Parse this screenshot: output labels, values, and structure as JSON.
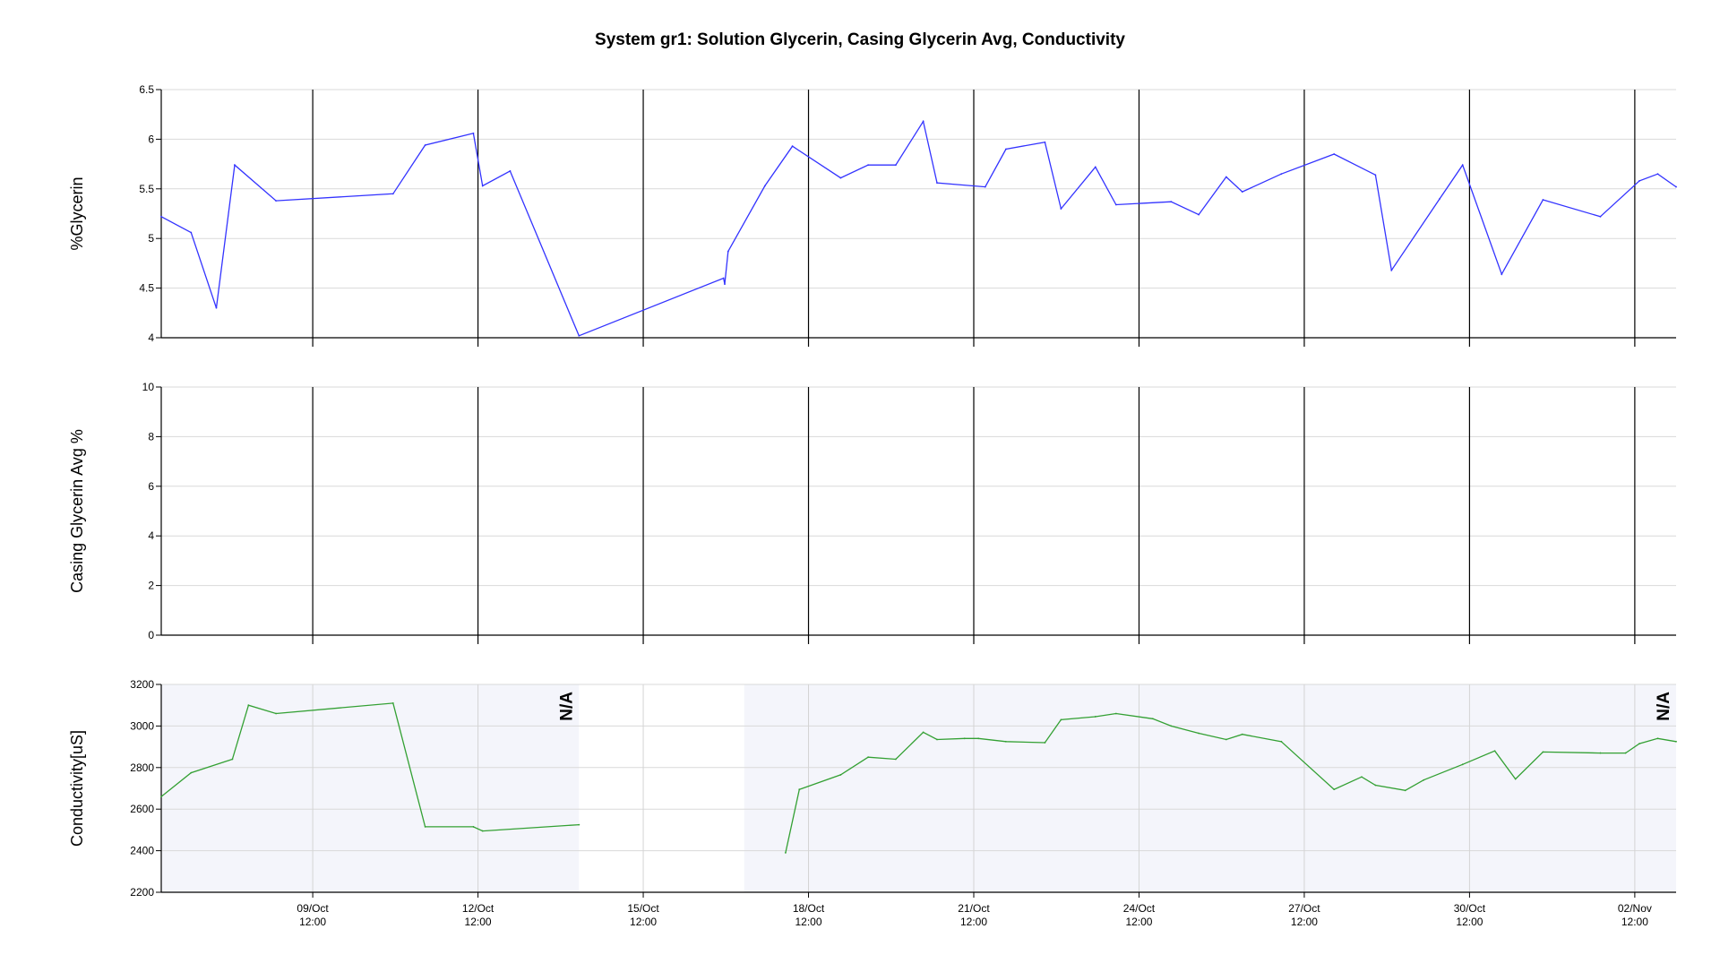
{
  "chart_data": {
    "type": "line",
    "title": "System gr1: Solution Glycerin, Casing Glycerin Avg, Conductivity",
    "x_range": [
      "2023-10-06 18:00",
      "2023-11-03 06:00"
    ],
    "x_ticks": [
      {
        "date": "2023-10-09 12:00",
        "line1": "09/Oct",
        "line2": "12:00"
      },
      {
        "date": "2023-10-12 12:00",
        "line1": "12/Oct",
        "line2": "12:00"
      },
      {
        "date": "2023-10-15 12:00",
        "line1": "15/Oct",
        "line2": "12:00"
      },
      {
        "date": "2023-10-18 12:00",
        "line1": "18/Oct",
        "line2": "12:00"
      },
      {
        "date": "2023-10-21 12:00",
        "line1": "21/Oct",
        "line2": "12:00"
      },
      {
        "date": "2023-10-24 12:00",
        "line1": "24/Oct",
        "line2": "12:00"
      },
      {
        "date": "2023-10-27 12:00",
        "line1": "27/Oct",
        "line2": "12:00"
      },
      {
        "date": "2023-10-30 12:00",
        "line1": "30/Oct",
        "line2": "12:00"
      },
      {
        "date": "2023-11-02 12:00",
        "line1": "02/Nov",
        "line2": "12:00"
      }
    ],
    "panels": [
      {
        "ylabel": "%Glycerin",
        "ylim": [
          4,
          6.5
        ],
        "yticks": [
          "4",
          "4.5",
          "5",
          "5.5",
          "6",
          "6.5"
        ],
        "tick_values": [
          4,
          4.5,
          5,
          5.5,
          6,
          6.5
        ],
        "color": "#3333ff",
        "series": [
          {
            "x": [
              "2023-10-06 18:00",
              "2023-10-07 07:00",
              "2023-10-07 18:00",
              "2023-10-08 02:00",
              "2023-10-08 20:00",
              "2023-10-10 23:00",
              "2023-10-11 13:00",
              "2023-10-12 10:00",
              "2023-10-12 14:00",
              "2023-10-13 02:00",
              "2023-10-14 08:00",
              "2023-10-16 23:00",
              "2023-10-16 23:30",
              "2023-10-17 01:00",
              "2023-10-17 17:00",
              "2023-10-18 05:00",
              "2023-10-19 02:00",
              "2023-10-19 14:00",
              "2023-10-20 02:00",
              "2023-10-20 14:00",
              "2023-10-20 20:00",
              "2023-10-21 17:00",
              "2023-10-22 02:00",
              "2023-10-22 19:00",
              "2023-10-23 02:00",
              "2023-10-23 17:00",
              "2023-10-24 02:00",
              "2023-10-25 02:00",
              "2023-10-25 14:00",
              "2023-10-26 02:00",
              "2023-10-26 09:00",
              "2023-10-27 02:00",
              "2023-10-28 01:00",
              "2023-10-28 19:00",
              "2023-10-29 02:00",
              "2023-10-29 23:00",
              "2023-10-30 09:00",
              "2023-10-31 02:00",
              "2023-10-31 20:00",
              "2023-11-01 21:00",
              "2023-11-02 14:00",
              "2023-11-02 22:00",
              "2023-11-03 06:00"
            ],
            "y": [
              5.22,
              5.06,
              4.3,
              5.74,
              5.38,
              5.45,
              5.94,
              6.06,
              5.53,
              5.68,
              4.02,
              4.6,
              4.54,
              4.87,
              5.53,
              5.93,
              5.61,
              5.74,
              5.74,
              6.18,
              5.56,
              5.52,
              5.9,
              5.97,
              5.3,
              5.72,
              5.34,
              5.37,
              5.24,
              5.62,
              5.47,
              5.65,
              5.85,
              5.64,
              4.68,
              5.4,
              5.74,
              4.64,
              5.39,
              5.22,
              5.58,
              5.65,
              5.52
            ]
          }
        ]
      },
      {
        "ylabel": "Casing Glycerin Avg %",
        "ylim": [
          0,
          10
        ],
        "yticks": [
          "0",
          "2",
          "4",
          "6",
          "8",
          "10"
        ],
        "tick_values": [
          0,
          2,
          4,
          6,
          8,
          10
        ],
        "color": "#3333ff",
        "series": []
      },
      {
        "ylabel": "Conductivity[uS]",
        "ylim": [
          2200,
          3200
        ],
        "yticks": [
          "2200",
          "2400",
          "2600",
          "2800",
          "3000",
          "3200"
        ],
        "tick_values": [
          2200,
          2400,
          2600,
          2800,
          3000,
          3200
        ],
        "color": "#33a033",
        "shaded_ranges": [
          [
            "2023-10-06 18:00",
            "2023-10-14 08:00"
          ],
          [
            "2023-10-17 08:00",
            "2023-11-03 06:00"
          ]
        ],
        "annotations": [
          {
            "text": "N/A",
            "x": "2023-10-14 08:00"
          },
          {
            "text": "N/A",
            "x": "2023-11-03 06:00"
          }
        ],
        "series": [
          {
            "x": [
              "2023-10-06 18:00",
              "2023-10-07 07:00",
              "2023-10-08 01:00",
              "2023-10-08 08:00",
              "2023-10-08 20:00",
              "2023-10-10 23:00",
              "2023-10-11 13:00",
              "2023-10-12 10:00",
              "2023-10-12 14:00",
              "2023-10-14 08:00"
            ],
            "y": [
              2660,
              2775,
              2840,
              3100,
              3060,
              3110,
              2515,
              2515,
              2495,
              2525
            ]
          },
          {
            "x": [
              "2023-10-18 02:00",
              "2023-10-18 08:00",
              "2023-10-19 02:00",
              "2023-10-19 14:00",
              "2023-10-20 02:00",
              "2023-10-20 14:00",
              "2023-10-20 20:00",
              "2023-10-21 08:00",
              "2023-10-21 14:00",
              "2023-10-22 02:00",
              "2023-10-22 19:00",
              "2023-10-23 02:00",
              "2023-10-23 17:00",
              "2023-10-24 02:00",
              "2023-10-24 18:00",
              "2023-10-25 02:00",
              "2023-10-25 14:00",
              "2023-10-26 02:00",
              "2023-10-26 09:00",
              "2023-10-27 02:00",
              "2023-10-28 01:00",
              "2023-10-28 13:00",
              "2023-10-28 19:00",
              "2023-10-29 08:00",
              "2023-10-29 16:00",
              "2023-10-30 09:00",
              "2023-10-30 23:00",
              "2023-10-31 08:00",
              "2023-10-31 20:00",
              "2023-11-01 21:00",
              "2023-11-02 08:00",
              "2023-11-02 14:00",
              "2023-11-02 22:00",
              "2023-11-03 06:00"
            ],
            "y": [
              2390,
              2695,
              2765,
              2850,
              2840,
              2970,
              2935,
              2940,
              2940,
              2925,
              2920,
              3030,
              3045,
              3060,
              3035,
              3000,
              2965,
              2935,
              2960,
              2925,
              2695,
              2755,
              2715,
              2690,
              2740,
              2815,
              2880,
              2745,
              2875,
              2870,
              2870,
              2915,
              2940,
              2925
            ]
          }
        ]
      }
    ]
  }
}
